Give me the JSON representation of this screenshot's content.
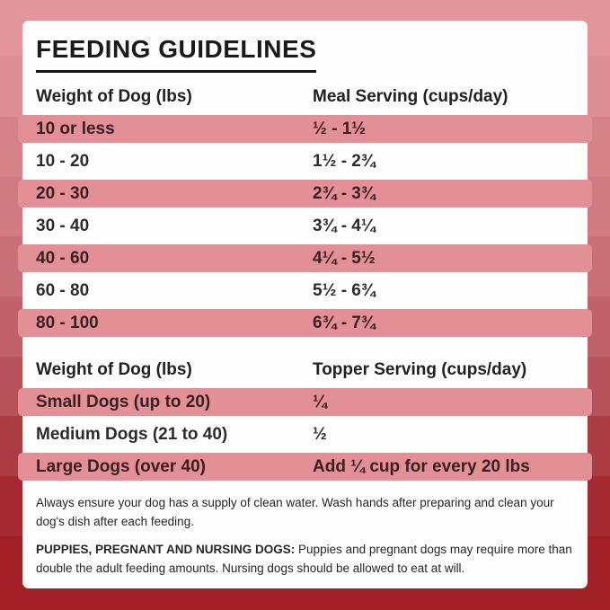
{
  "title": "FEEDING GUIDELINES",
  "meal_table": {
    "col1_header": "Weight of Dog (lbs)",
    "col2_header": "Meal Serving (cups/day)",
    "rows": [
      {
        "weight": "10 or less",
        "serving": "½ - 1½"
      },
      {
        "weight": "10 - 20",
        "serving": "1½ - 2¾"
      },
      {
        "weight": "20 - 30",
        "serving": "2¾ - 3¾"
      },
      {
        "weight": "30 - 40",
        "serving": "3¾ - 4¼"
      },
      {
        "weight": "40 - 60",
        "serving": "4¼ - 5½"
      },
      {
        "weight": "60 - 80",
        "serving": "5½ - 6¾"
      },
      {
        "weight": "80 - 100",
        "serving": "6¾ - 7¾"
      }
    ]
  },
  "topper_table": {
    "col1_header": "Weight of Dog (lbs)",
    "col2_header": "Topper Serving (cups/day)",
    "rows": [
      {
        "weight": "Small Dogs (up to 20)",
        "serving": "¼"
      },
      {
        "weight": "Medium Dogs (21 to 40)",
        "serving": "½"
      },
      {
        "weight": "Large Dogs (over 40)",
        "serving": "Add ¼ cup for every 20 lbs"
      }
    ]
  },
  "notes": {
    "water_note": "Always ensure your dog has a supply of clean water. Wash hands after preparing and clean your dog's dish after each feeding.",
    "puppies_label": "PUPPIES, PREGNANT AND NURSING DOGS:",
    "puppies_text": "Puppies and pregnant dogs may require more than double the adult feeding amounts. Nursing dogs should be allowed to eat at will."
  },
  "colors": {
    "row_highlight": "#e38f96",
    "card_background": "#fefefe",
    "background_top": "#e2969c",
    "background_bottom": "#a21f26",
    "title_text": "#1b1b1b"
  }
}
